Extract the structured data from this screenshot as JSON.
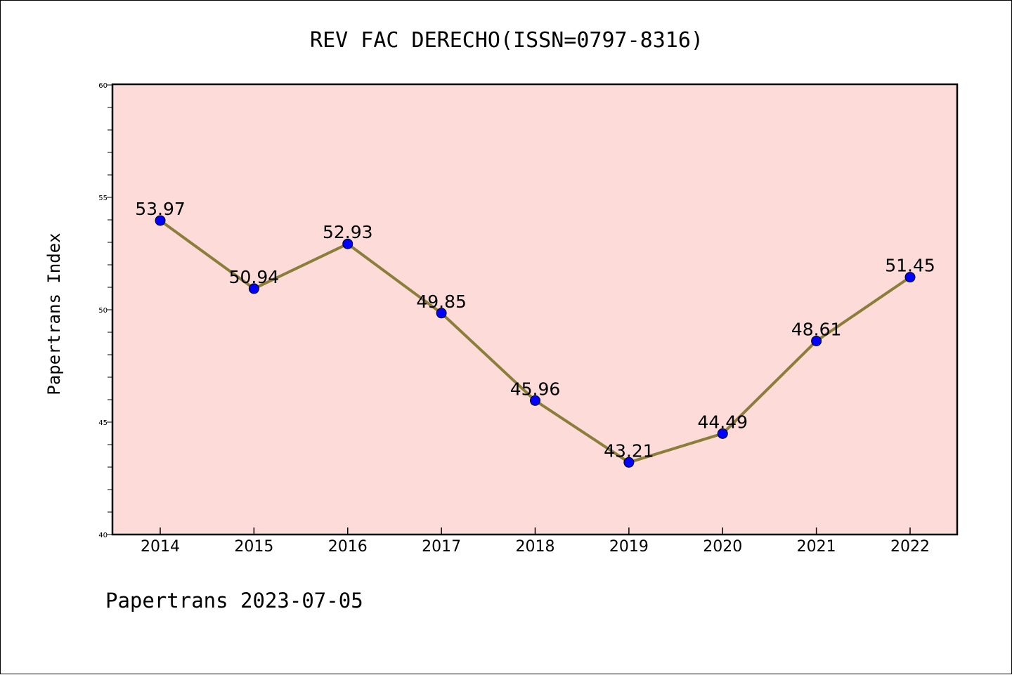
{
  "chart_data": {
    "type": "line",
    "title": "REV FAC DERECHO(ISSN=0797-8316)",
    "xlabel": "",
    "ylabel": "Papertrans Index",
    "footer": "Papertrans 2023-07-05",
    "x": [
      "2014",
      "2015",
      "2016",
      "2017",
      "2018",
      "2019",
      "2020",
      "2021",
      "2022"
    ],
    "series": [
      {
        "values": [
          53.97,
          50.94,
          52.93,
          49.85,
          45.96,
          43.21,
          44.49,
          48.61,
          51.45
        ],
        "data_labels": [
          "53.97",
          "50.94",
          "52.93",
          "49.85",
          "45.96",
          "43.21",
          "44.49",
          "48.61",
          "51.45"
        ],
        "line_color": "#8B7D3A",
        "marker_color": "#0000FF"
      }
    ],
    "ylim": [
      40,
      60
    ],
    "yticks": [
      "40",
      "45",
      "50",
      "55",
      "60"
    ],
    "grid": false,
    "legend": "none",
    "plot_background": "#FDDBD8"
  }
}
